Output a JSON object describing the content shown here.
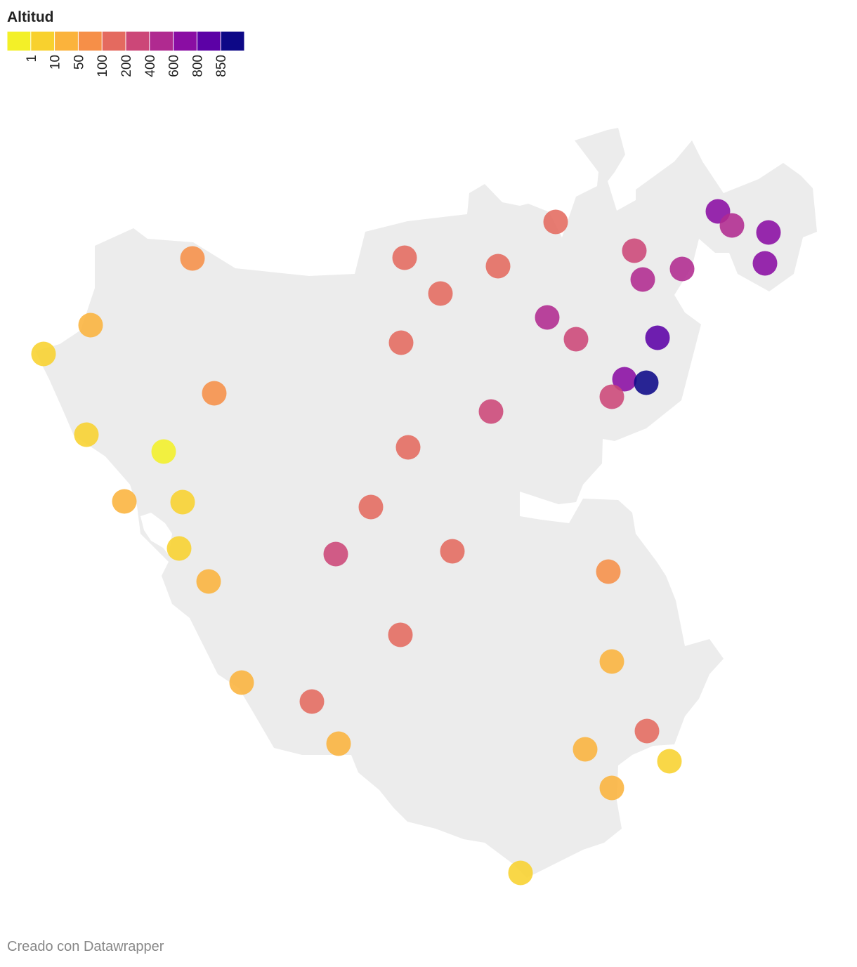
{
  "legend": {
    "title": "Altitud",
    "colors": [
      "#f3f028",
      "#f8d12e",
      "#fbb33c",
      "#f68f48",
      "#e46a5f",
      "#cc4778",
      "#b02a90",
      "#8a0da3",
      "#5c01a6",
      "#0d0887"
    ],
    "ticks": [
      1,
      10,
      50,
      100,
      200,
      400,
      600,
      800,
      850
    ]
  },
  "points": {
    "values": [
      150,
      75,
      150,
      150,
      150,
      300,
      500,
      500,
      700,
      500,
      700,
      700,
      500,
      300,
      820,
      150,
      30,
      5,
      75,
      700,
      900,
      300,
      300,
      150,
      5,
      0.5,
      30,
      5,
      150,
      5,
      300,
      150,
      30,
      75,
      150,
      30,
      30,
      150,
      150,
      30,
      30,
      5,
      30,
      5
    ]
  },
  "footer": "Creado con Datawrapper"
}
